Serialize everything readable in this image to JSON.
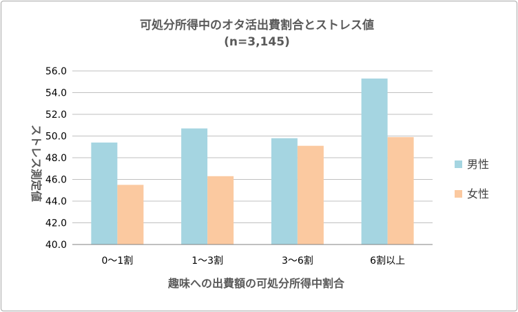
{
  "chart_data": {
    "type": "bar",
    "title": "可処分所得中のオタ活出費割合とストレス値",
    "subtitle": "(n=3,145)",
    "xlabel": "趣味への出費額の可処分所得中割合",
    "ylabel": "ストレス測定値",
    "categories": [
      "0〜1割",
      "1〜3割",
      "3〜6割",
      "6割以上"
    ],
    "series": [
      {
        "name": "男性",
        "values": [
          49.4,
          50.7,
          49.8,
          55.3
        ],
        "color": "#a5d5e1"
      },
      {
        "name": "女性",
        "values": [
          45.5,
          46.3,
          49.1,
          49.9
        ],
        "color": "#fbc9a0"
      }
    ],
    "ylim": [
      40.0,
      56.0
    ],
    "yticks": [
      "40.0",
      "42.0",
      "44.0",
      "46.0",
      "48.0",
      "50.0",
      "52.0",
      "54.0",
      "56.0"
    ],
    "grid": true,
    "legend_position": "right"
  }
}
